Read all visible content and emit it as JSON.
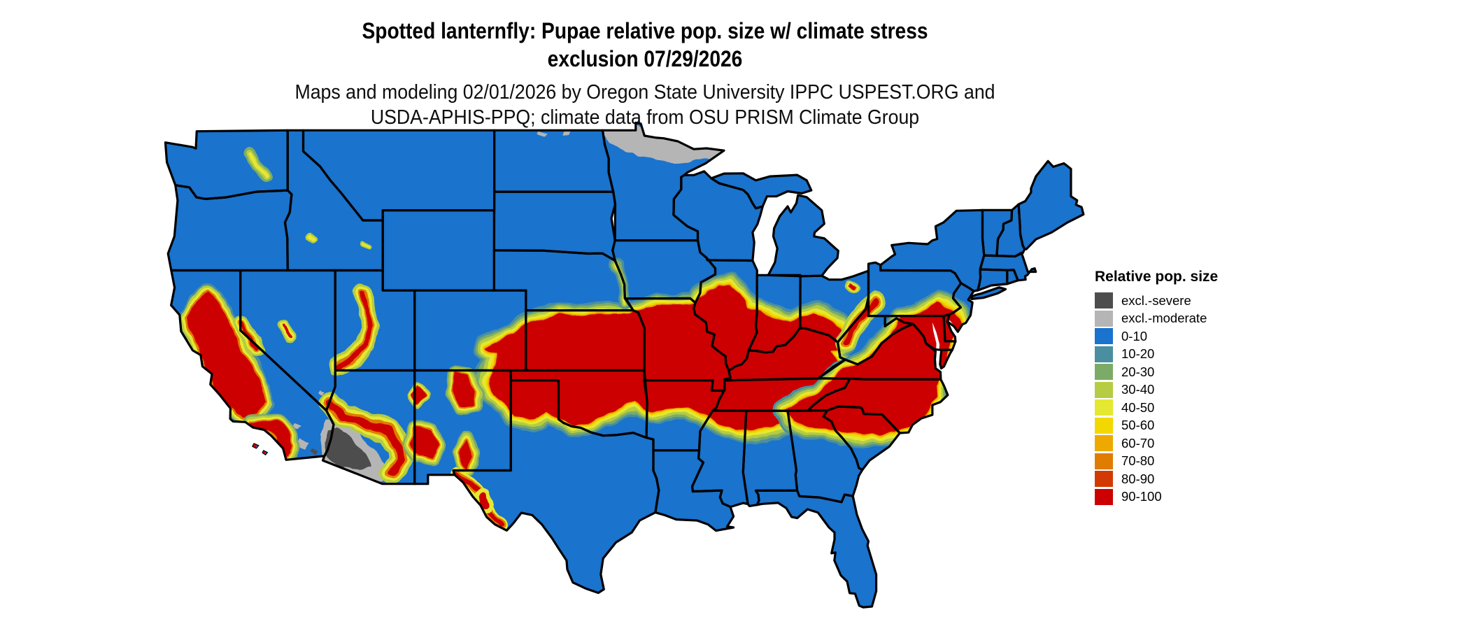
{
  "header": {
    "title_line1": "Spotted lanternfly: Pupae relative pop. size w/ climate stress",
    "title_line2": "exclusion 07/29/2026",
    "subtitle_line1": "Maps and modeling 02/01/2026 by Oregon State University IPPC USPEST.ORG and",
    "subtitle_line2": "USDA-APHIS-PPQ; climate data from OSU PRISM Climate Group"
  },
  "legend": {
    "title": "Relative pop. size",
    "entries": [
      {
        "label": "excl.-severe",
        "color": "#4D4D4D"
      },
      {
        "label": "excl.-moderate",
        "color": "#B5B5B5"
      },
      {
        "label": "0-10",
        "color": "#1A73CC"
      },
      {
        "label": "10-20",
        "color": "#4A8FA0"
      },
      {
        "label": "20-30",
        "color": "#7CAB68"
      },
      {
        "label": "30-40",
        "color": "#B5CC43"
      },
      {
        "label": "40-50",
        "color": "#E5E830"
      },
      {
        "label": "50-60",
        "color": "#F2D800"
      },
      {
        "label": "60-70",
        "color": "#EDA900"
      },
      {
        "label": "70-80",
        "color": "#E07C00"
      },
      {
        "label": "80-90",
        "color": "#D33A03"
      },
      {
        "label": "90-100",
        "color": "#CC0000"
      }
    ]
  },
  "map": {
    "border_color": "#000000",
    "water_color": "#FFFFFF"
  }
}
